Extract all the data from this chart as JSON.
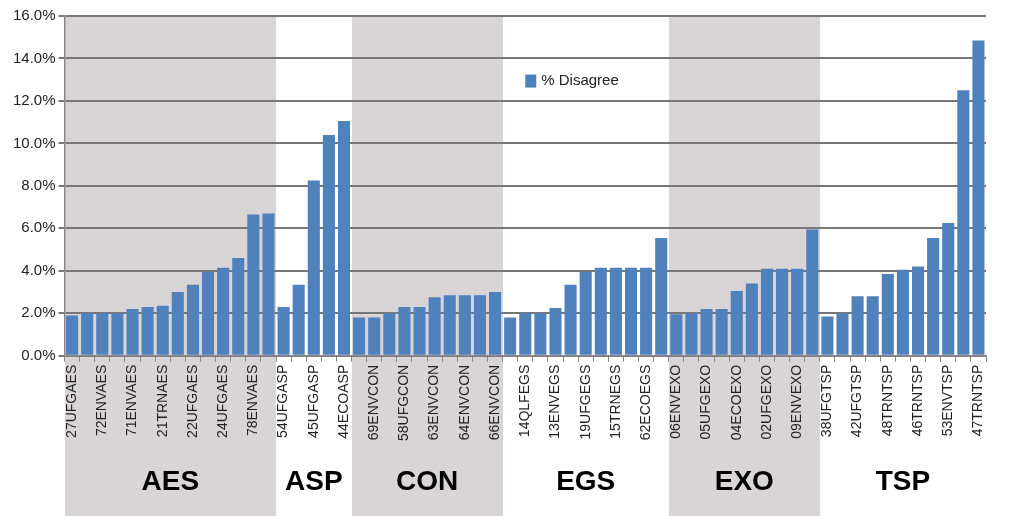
{
  "chart_data": {
    "type": "bar",
    "categories": [
      "27UFGAES",
      null,
      "72ENVAES",
      null,
      "71ENVAES",
      null,
      "21TRNAES",
      null,
      "22UFGAES",
      null,
      "24UFGAES",
      null,
      "78ENVAES",
      null,
      "54UFGASP",
      null,
      "45UFGASP",
      null,
      "44ECOASP",
      null,
      "69ENVCON",
      null,
      "58UFGCON",
      null,
      "63ENVCON",
      null,
      "64ENVCON",
      null,
      "66ENVCON",
      null,
      "14QLFEGS",
      null,
      "13ENVEGS",
      null,
      "19UFGEGS",
      null,
      "15TRNEGS",
      null,
      "62ECOEGS",
      null,
      "06ENVEXO",
      null,
      "05UFGEXO",
      null,
      "04ECOEXO",
      null,
      "02UFGEXO",
      null,
      "09ENVEXO",
      null,
      "38UFGTSP",
      null,
      "42UFGTSP",
      null,
      "48TRNTSP",
      null,
      "46TRNTSP",
      null,
      "53ENVTSP",
      null,
      "47TRNTSP"
    ],
    "series": [
      {
        "name": "% Disagree",
        "color": "#4f81bd",
        "values": [
          1.9,
          2.0,
          2.0,
          2.0,
          2.2,
          2.3,
          2.35,
          3.0,
          3.35,
          3.95,
          4.15,
          4.6,
          6.65,
          6.7,
          2.3,
          3.35,
          8.25,
          10.4,
          11.05,
          1.8,
          1.8,
          2.0,
          2.3,
          2.3,
          2.75,
          2.85,
          2.85,
          2.85,
          3.0,
          1.8,
          2.0,
          2.0,
          2.25,
          3.35,
          3.95,
          4.15,
          4.15,
          4.15,
          4.15,
          5.55,
          1.95,
          2.0,
          2.2,
          2.2,
          3.05,
          3.4,
          4.1,
          4.1,
          4.1,
          5.95,
          1.85,
          2.0,
          2.8,
          2.8,
          3.85,
          4.05,
          4.2,
          5.55,
          6.25,
          12.5,
          14.85
        ]
      }
    ],
    "ylim": [
      0,
      16
    ],
    "yticks": [
      {
        "value": 0,
        "label": "0.0%"
      },
      {
        "value": 2,
        "label": "2.0%"
      },
      {
        "value": 4,
        "label": "4.0%"
      },
      {
        "value": 6,
        "label": "6.0%"
      },
      {
        "value": 8,
        "label": "8.0%"
      },
      {
        "value": 10,
        "label": "10.0%"
      },
      {
        "value": 12,
        "label": "12.0%"
      },
      {
        "value": 14,
        "label": "14.0%"
      },
      {
        "value": 16,
        "label": "16.0%"
      }
    ],
    "grid": "y",
    "legend": "top",
    "annotations": [
      "AES",
      "ASP",
      "CON",
      "EGS",
      "EXO",
      "TSP"
    ]
  }
}
